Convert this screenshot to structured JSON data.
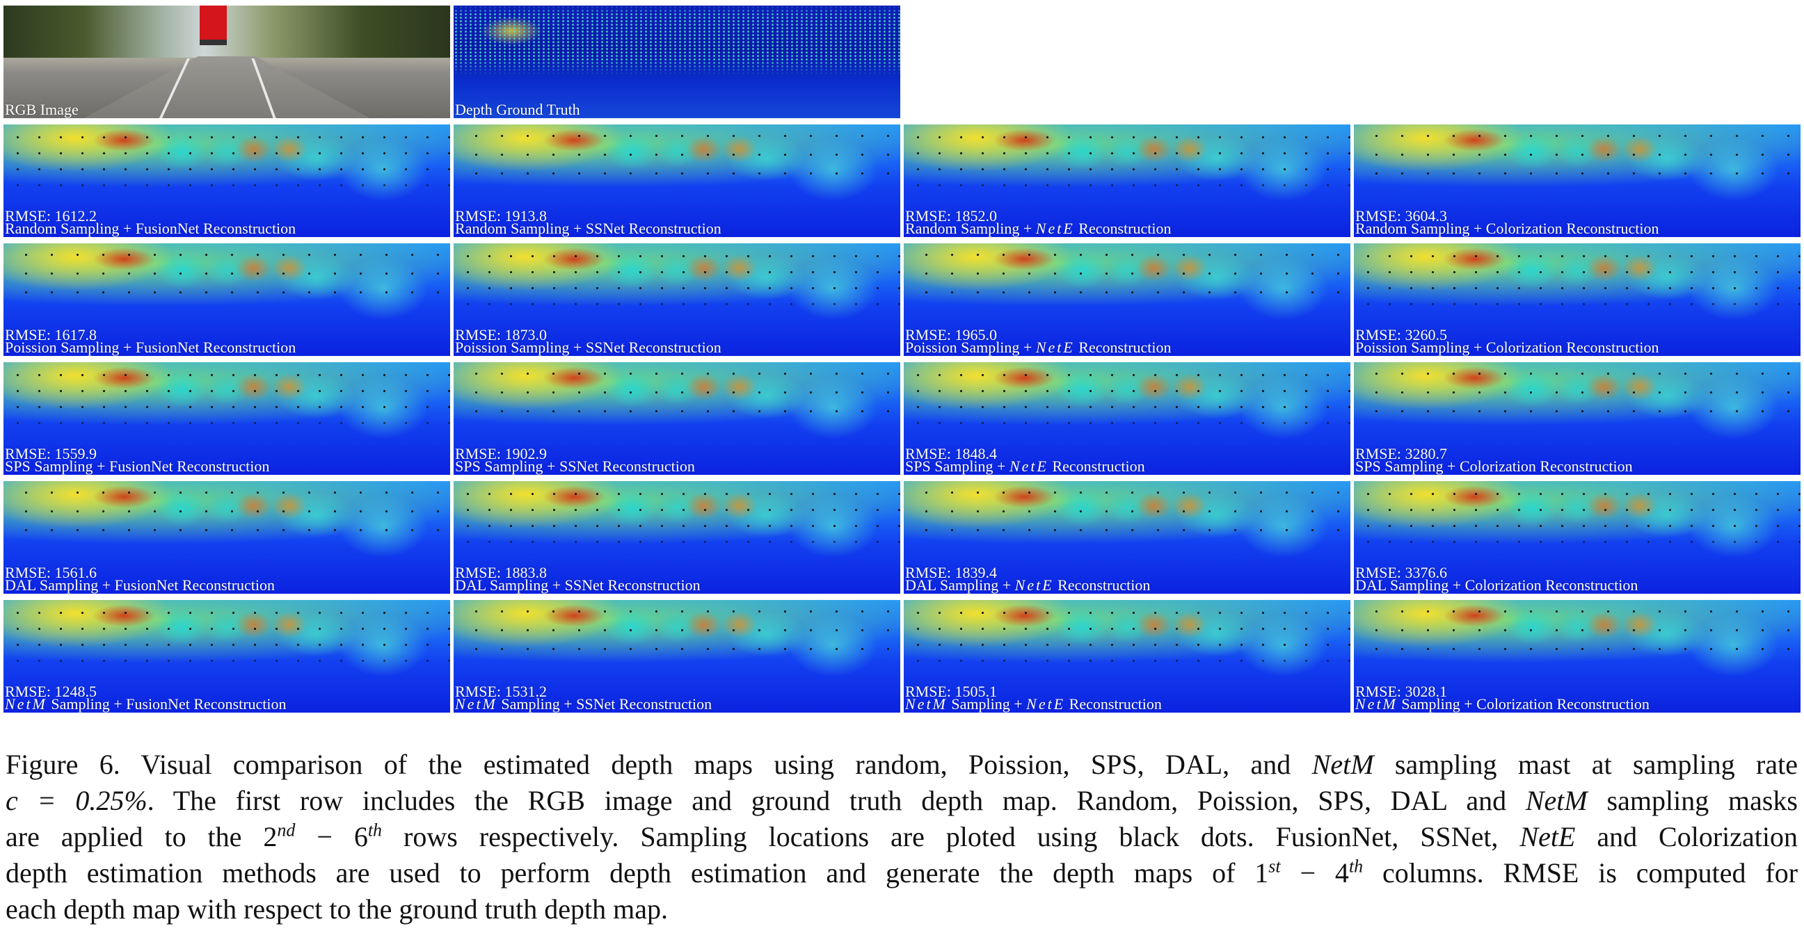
{
  "top_row": {
    "rgb_label": "RGB Image",
    "gt_label": "Depth Ground Truth"
  },
  "grid": [
    [
      {
        "rmse": "RMSE: 1612.2",
        "sampling": "Random Sampling",
        "recon": " + FusionNet Reconstruction"
      },
      {
        "rmse": "RMSE: 1913.8",
        "sampling": "Random Sampling",
        "recon": " + SSNet Reconstruction"
      },
      {
        "rmse": "RMSE: 1852.0",
        "sampling": "Random Sampling + ",
        "netE": "NetE",
        "recon": " Reconstruction"
      },
      {
        "rmse": "RMSE: 3604.3",
        "sampling": "Random Sampling",
        "recon": " + Colorization Reconstruction"
      }
    ],
    [
      {
        "rmse": "RMSE: 1617.8",
        "sampling": "Poission Sampling",
        "recon": " + FusionNet Reconstruction"
      },
      {
        "rmse": "RMSE: 1873.0",
        "sampling": "Poission Sampling",
        "recon": " + SSNet Reconstruction"
      },
      {
        "rmse": "RMSE: 1965.0",
        "sampling": "Poission Sampling + ",
        "netE": "NetE",
        "recon": " Reconstruction"
      },
      {
        "rmse": "RMSE: 3260.5",
        "sampling": "Poission Sampling",
        "recon": " + Colorization Reconstruction"
      }
    ],
    [
      {
        "rmse": "RMSE: 1559.9",
        "sampling": "SPS Sampling",
        "recon": " + FusionNet Reconstruction"
      },
      {
        "rmse": "RMSE: 1902.9",
        "sampling": "SPS Sampling",
        "recon": " + SSNet Reconstruction"
      },
      {
        "rmse": "RMSE: 1848.4",
        "sampling": "SPS Sampling + ",
        "netE": "NetE",
        "recon": " Reconstruction"
      },
      {
        "rmse": "RMSE: 3280.7",
        "sampling": "SPS Sampling",
        "recon": " + Colorization Reconstruction"
      }
    ],
    [
      {
        "rmse": "RMSE: 1561.6",
        "sampling": "DAL Sampling",
        "recon": " + FusionNet Reconstruction"
      },
      {
        "rmse": "RMSE: 1883.8",
        "sampling": "DAL Sampling",
        "recon": " + SSNet Reconstruction"
      },
      {
        "rmse": "RMSE: 1839.4",
        "sampling": "DAL Sampling + ",
        "netE": "NetE",
        "recon": " Reconstruction"
      },
      {
        "rmse": "RMSE: 3376.6",
        "sampling": "DAL Sampling",
        "recon": " + Colorization Reconstruction"
      }
    ],
    [
      {
        "rmse": "RMSE: 1248.5",
        "netM": "NetM",
        "sampling": " Sampling",
        "recon": " + FusionNet Reconstruction"
      },
      {
        "rmse": "RMSE: 1531.2",
        "netM": "NetM",
        "sampling": " Sampling",
        "recon": " + SSNet Reconstruction"
      },
      {
        "rmse": "RMSE: 1505.1",
        "netM": "NetM",
        "sampling": " Sampling + ",
        "netE": "NetE",
        "recon": " Reconstruction"
      },
      {
        "rmse": "RMSE: 3028.1",
        "netM": "NetM",
        "sampling": " Sampling",
        "recon": " + Colorization Reconstruction"
      }
    ]
  ],
  "caption": {
    "l1a": "Figure 6. Visual comparison of the estimated depth maps using random, Poission, SPS, DAL, and ",
    "l1m": "NetM",
    "l1b": " sampling mast at sampling rate",
    "l2m": "c = 0.25%",
    "l2a": ". The first row includes the RGB image and ground truth depth map. Random, Poission, SPS, DAL and ",
    "l2m2": "NetM",
    "l2b": " sampling masks",
    "l3a": "are applied to the 2",
    "l3s1": "nd",
    "l3b": " − 6",
    "l3s2": "th",
    "l3c": " rows respectively. Sampling locations are ploted using black dots. FusionNet, SSNet, ",
    "l3m": "NetE",
    "l3d": " and Colorization",
    "l4a": "depth estimation methods are used to perform depth estimation and generate the depth maps of 1",
    "l4s1": "st",
    "l4b": " − 4",
    "l4s2": "th",
    "l4c": " columns. RMSE is computed for",
    "l5": "each depth map with respect to the ground truth depth map."
  }
}
